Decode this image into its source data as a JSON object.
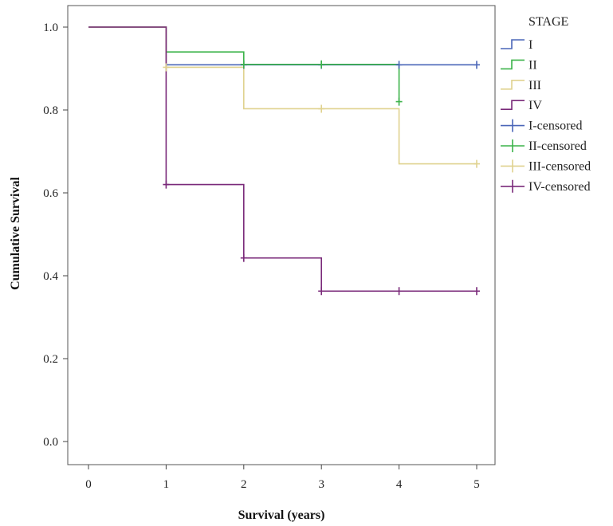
{
  "chart_data": {
    "type": "line",
    "subtype": "kaplan-meier-step",
    "xlabel": "Survival (years)",
    "ylabel": "Cumulative Survival",
    "xlim": [
      0,
      5
    ],
    "ylim": [
      0,
      1.0
    ],
    "x_ticks": [
      "0",
      "1",
      "2",
      "3",
      "4",
      "5"
    ],
    "y_ticks": [
      "0.0",
      "0.2",
      "0.4",
      "0.6",
      "0.8",
      "1.0"
    ],
    "grid": false,
    "legend_title": "STAGE",
    "legend_position": "right",
    "legend_entries": [
      "I",
      "II",
      "III",
      "IV",
      "I-censored",
      "II-censored",
      "III-censored",
      "IV-censored"
    ],
    "series": [
      {
        "name": "I",
        "color": "#4a66b8",
        "steps": [
          [
            0,
            1.0
          ],
          [
            1,
            0.909
          ],
          [
            5,
            0.909
          ]
        ],
        "censored": [
          [
            2,
            0.909
          ],
          [
            3,
            0.909
          ],
          [
            4,
            0.909
          ],
          [
            5,
            0.909
          ]
        ]
      },
      {
        "name": "II",
        "color": "#3cb34a",
        "steps": [
          [
            0,
            1.0
          ],
          [
            1,
            0.94
          ],
          [
            2,
            0.91
          ],
          [
            4,
            0.82
          ]
        ],
        "censored": [
          [
            2,
            0.91
          ],
          [
            3,
            0.91
          ],
          [
            4,
            0.82
          ]
        ]
      },
      {
        "name": "III",
        "color": "#e0d28f",
        "steps": [
          [
            0,
            1.0
          ],
          [
            1,
            0.903
          ],
          [
            2,
            0.803
          ],
          [
            4,
            0.67
          ],
          [
            5,
            0.67
          ]
        ],
        "censored": [
          [
            1,
            0.903
          ],
          [
            3,
            0.803
          ],
          [
            5,
            0.67
          ]
        ]
      },
      {
        "name": "IV",
        "color": "#7a2a7a",
        "steps": [
          [
            0,
            1.0
          ],
          [
            1,
            0.62
          ],
          [
            2,
            0.443
          ],
          [
            3,
            0.363
          ],
          [
            5,
            0.363
          ]
        ],
        "censored": [
          [
            1,
            0.62
          ],
          [
            2,
            0.443
          ],
          [
            3,
            0.363
          ],
          [
            4,
            0.363
          ],
          [
            5,
            0.363
          ]
        ]
      }
    ]
  }
}
